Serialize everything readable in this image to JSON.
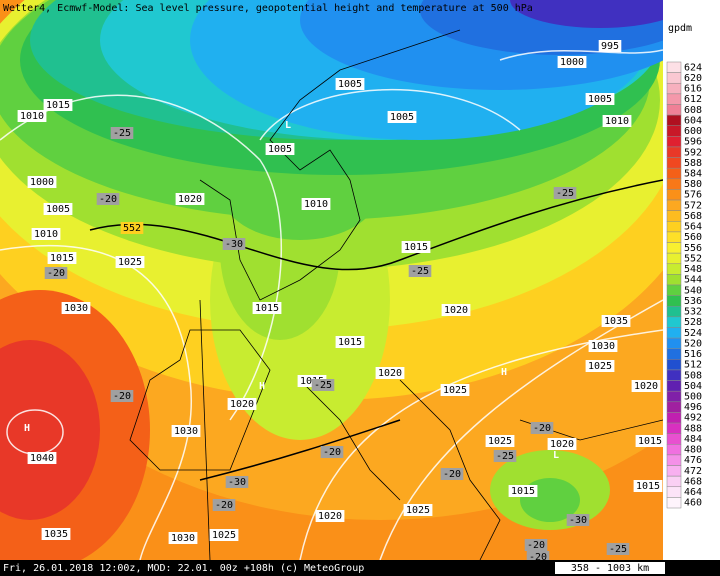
{
  "header": {
    "title": "Wetter4, Ecmwf-Model: Sea level pressure, geopotential height and temperature at 500 hPa"
  },
  "legend": {
    "unit": "gpdm",
    "levels": [
      624,
      620,
      616,
      612,
      608,
      604,
      600,
      596,
      592,
      588,
      584,
      580,
      576,
      572,
      568,
      564,
      560,
      556,
      552,
      548,
      544,
      540,
      536,
      532,
      528,
      524,
      520,
      516,
      512,
      508,
      504,
      500,
      496,
      492,
      488,
      484,
      480,
      476,
      472,
      468,
      464,
      460
    ],
    "colors": [
      "#fde0e6",
      "#fac8d2",
      "#f7b0be",
      "#f498aa",
      "#f08096",
      "#b01020",
      "#c81828",
      "#e02030",
      "#e83828",
      "#f04820",
      "#f46018",
      "#f87818",
      "#fa9018",
      "#fca820",
      "#fdbc20",
      "#fed020",
      "#fee028",
      "#f8f030",
      "#e8f030",
      "#c8ec30",
      "#a0e030",
      "#60d040",
      "#30c050",
      "#20c090",
      "#20c8d0",
      "#20b0f0",
      "#2090f0",
      "#2070e0",
      "#2050d0",
      "#4030c0",
      "#6020b0",
      "#8020a8",
      "#a020a0",
      "#c020b0",
      "#d830c0",
      "#e850d0",
      "#f070e0",
      "#f490e8",
      "#f8b0f0",
      "#fad0f4",
      "#fce4f8",
      "#fef4fc"
    ]
  },
  "map": {
    "pressure_labels": [
      "1005",
      "1005",
      "1005",
      "1010",
      "1000",
      "995",
      "1005",
      "1010",
      "1015",
      "1010",
      "1000",
      "1005",
      "1010",
      "1020",
      "1015",
      "1025",
      "1015",
      "1015",
      "1020",
      "1035",
      "1030",
      "1025",
      "1030",
      "1015",
      "1020",
      "1015",
      "1025",
      "1020",
      "1020",
      "1030",
      "1025",
      "1020",
      "1015",
      "1040",
      "1025",
      "1020",
      "1015",
      "1025",
      "1030",
      "1035",
      "1015"
    ],
    "temperature_labels": [
      "-25",
      "-20",
      "-25",
      "-30",
      "-25",
      "-20",
      "-25",
      "-20",
      "-20",
      "-20",
      "-25",
      "-20",
      "-30",
      "-20",
      "-30",
      "-20",
      "-25",
      "-20"
    ],
    "height_label": "552",
    "centers": [
      "L",
      "H",
      "H",
      "H",
      "L"
    ]
  },
  "footer": {
    "caption": "Fri, 26.01.2018 12:00z, MOD: 22.01. 00z +108h (c) MeteoGroup",
    "scale": "358 - 1003 km"
  }
}
